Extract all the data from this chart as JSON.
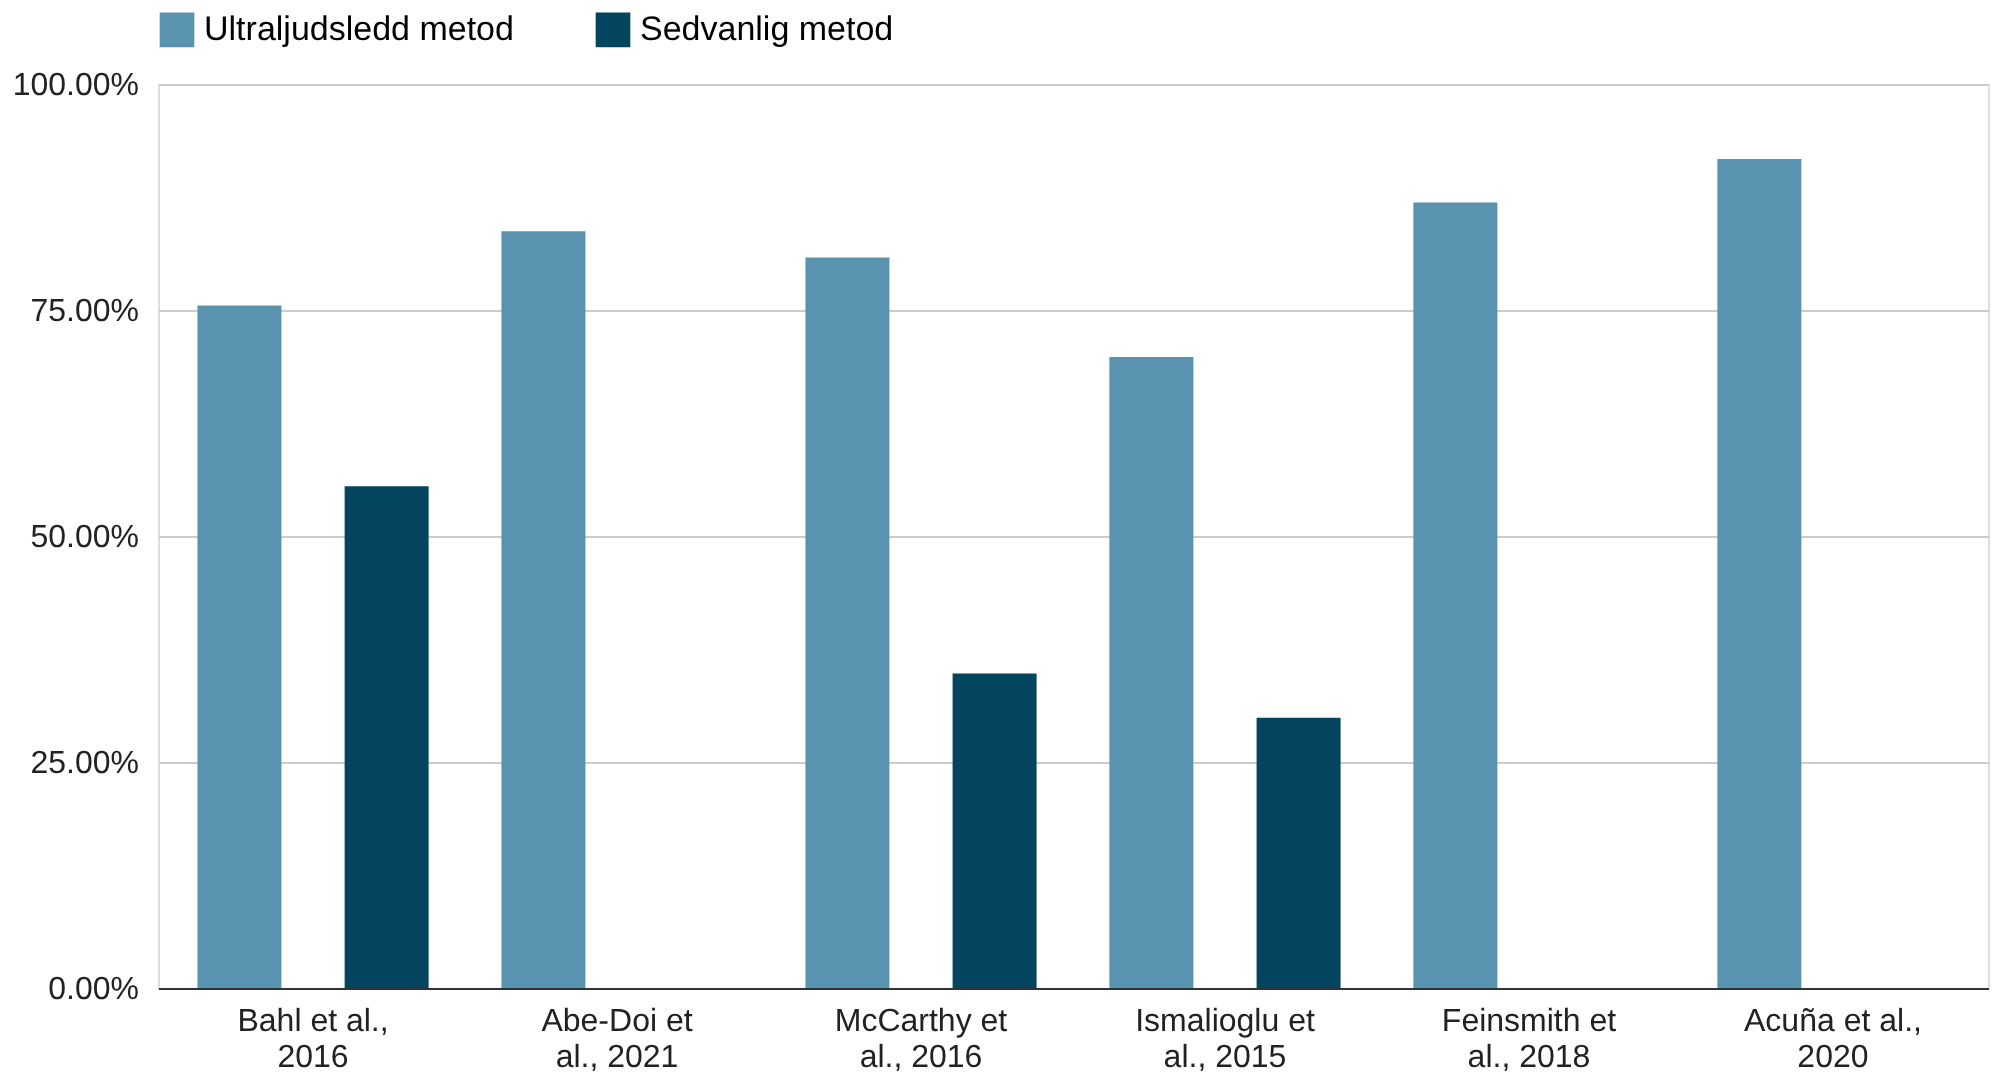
{
  "chart_data": {
    "type": "bar",
    "categories": [
      "Bahl et al.,\n2016",
      "Abe-Doi et\nal., 2021",
      "McCarthy et\nal., 2016",
      "Ismalioglu et\nal., 2015",
      "Feinsmith et\nal., 2018",
      "Acuña et al.,\n2020"
    ],
    "series": [
      {
        "name": "Ultraljudsledd metod",
        "color": "#5a93b0",
        "values": [
          75.5,
          83.7,
          80.8,
          69.8,
          86.9,
          91.7
        ]
      },
      {
        "name": "Sedvanlig metod",
        "color": "#03455f",
        "values": [
          55.5,
          null,
          34.8,
          29.9,
          null,
          null
        ]
      }
    ],
    "ylim": [
      0,
      100
    ],
    "yticks": [
      {
        "value": 0,
        "label": "0.00%"
      },
      {
        "value": 25,
        "label": "25.00%"
      },
      {
        "value": 50,
        "label": "50.00%"
      },
      {
        "value": 75,
        "label": "75.00%"
      },
      {
        "value": 100,
        "label": "100.00%"
      }
    ],
    "grid": "y",
    "legend": "top"
  }
}
